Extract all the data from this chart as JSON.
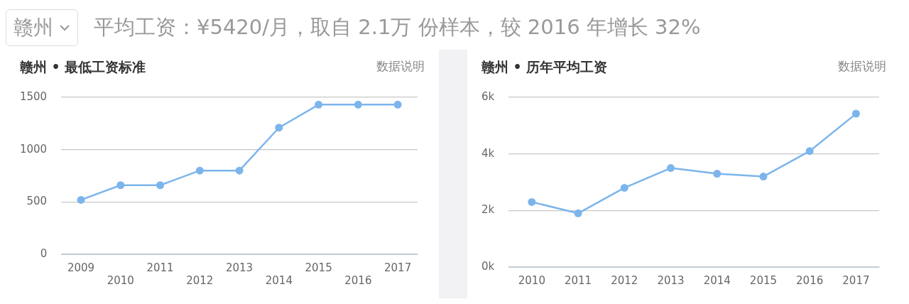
{
  "chart_data": [
    {
      "type": "line",
      "title": "赣州 • 最低工资标准",
      "annotations": [
        "赣州",
        "平均工资：¥5420/月，取自 2.1万 份样本，较 2016 年增长 32%",
        "数据说明"
      ],
      "categories": [
        "2009",
        "2010",
        "2011",
        "2012",
        "2013",
        "2014",
        "2015",
        "2016",
        "2017"
      ],
      "series": [
        {
          "color": "#7cb5ec",
          "values": [
            520,
            660,
            660,
            800,
            800,
            1210,
            1430,
            1430,
            1430
          ]
        }
      ],
      "ylim": [
        0,
        1500
      ],
      "yticks": [
        0,
        500,
        1000,
        1500
      ],
      "grid": "y",
      "legend": false,
      "marker": "circle",
      "line_style": "solid"
    },
    {
      "type": "line",
      "title": "赣州 • 历年平均工资",
      "annotations": [
        "数据说明"
      ],
      "categories": [
        "2010",
        "2011",
        "2012",
        "2013",
        "2014",
        "2015",
        "2016",
        "2017"
      ],
      "series": [
        {
          "color": "#7cb5ec",
          "values": [
            2300,
            1900,
            2800,
            3500,
            3300,
            3200,
            4100,
            5420
          ]
        }
      ],
      "ylim": [
        0,
        6000
      ],
      "yticks": [
        {
          "value": 0,
          "label": "0k"
        },
        {
          "value": 2000,
          "label": "2k"
        },
        {
          "value": 4000,
          "label": "4k"
        },
        {
          "value": 6000,
          "label": "6k"
        }
      ],
      "grid": "y",
      "legend": false,
      "marker": "circle",
      "line_style": "solid"
    }
  ]
}
